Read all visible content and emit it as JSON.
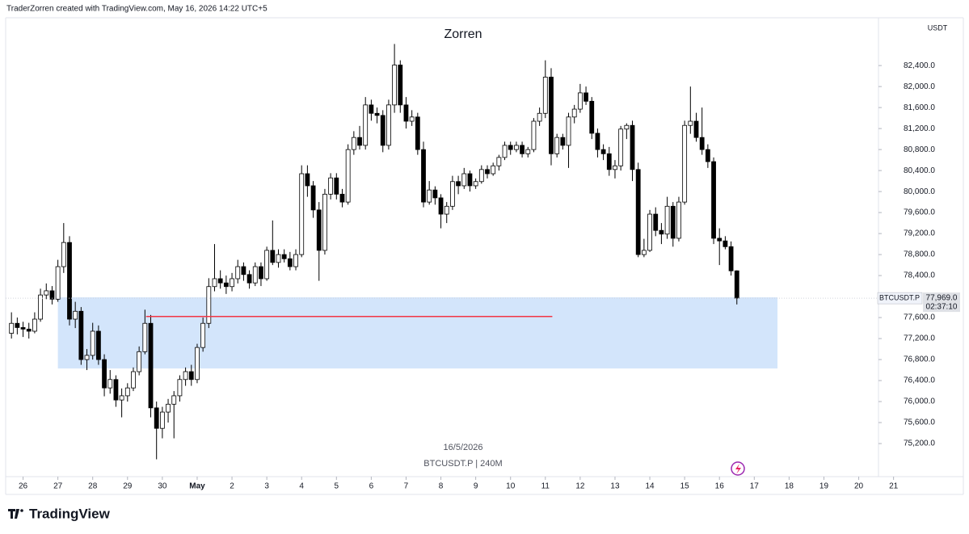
{
  "header": "TraderZorren created with TradingView.com, May 16, 2026 14:22 UTC+5",
  "footer": "TradingView",
  "chart_data": {
    "type": "candlestick",
    "title": "Zorren",
    "watermark_date": "16/5/2026",
    "watermark_symbol": "BTCUSDT.P | 240M",
    "y_unit": "USDT",
    "up_color": "#ffffff",
    "down_color": "#000000",
    "edge_color": "#000000",
    "grid": false,
    "xlim": [
      -1,
      154
    ],
    "ylim": [
      74570,
      83310
    ],
    "xticks": [
      {
        "value": 2,
        "label": "26"
      },
      {
        "value": 8,
        "label": "27"
      },
      {
        "value": 14,
        "label": "28"
      },
      {
        "value": 20,
        "label": "29"
      },
      {
        "value": 26,
        "label": "30"
      },
      {
        "value": 32,
        "label": "May"
      },
      {
        "value": 38,
        "label": "2"
      },
      {
        "value": 44,
        "label": "3"
      },
      {
        "value": 50,
        "label": "4"
      },
      {
        "value": 56,
        "label": "5"
      },
      {
        "value": 62,
        "label": "6"
      },
      {
        "value": 68,
        "label": "7"
      },
      {
        "value": 74,
        "label": "8"
      },
      {
        "value": 80,
        "label": "9"
      },
      {
        "value": 86,
        "label": "10"
      },
      {
        "value": 92,
        "label": "11"
      },
      {
        "value": 98,
        "label": "12"
      },
      {
        "value": 104,
        "label": "13"
      },
      {
        "value": 110,
        "label": "14"
      },
      {
        "value": 116,
        "label": "15"
      },
      {
        "value": 122,
        "label": "16"
      },
      {
        "value": 128,
        "label": "17"
      },
      {
        "value": 134,
        "label": "18"
      },
      {
        "value": 140,
        "label": "19"
      },
      {
        "value": 146,
        "label": "20"
      },
      {
        "value": 152,
        "label": "21"
      }
    ],
    "yticks": [
      {
        "value": 75200,
        "label": "75,200.0"
      },
      {
        "value": 75600,
        "label": "75,600.0"
      },
      {
        "value": 76000,
        "label": "76,000.0"
      },
      {
        "value": 76400,
        "label": "76,400.0"
      },
      {
        "value": 76800,
        "label": "76,800.0"
      },
      {
        "value": 77200,
        "label": "77,200.0"
      },
      {
        "value": 77600,
        "label": "77,600.0"
      },
      {
        "value": 78400,
        "label": "78,400.0"
      },
      {
        "value": 78800,
        "label": "78,800.0"
      },
      {
        "value": 79200,
        "label": "79,200.0"
      },
      {
        "value": 79600,
        "label": "79,600.0"
      },
      {
        "value": 80000,
        "label": "80,000.0"
      },
      {
        "value": 80400,
        "label": "80,400.0"
      },
      {
        "value": 80800,
        "label": "80,800.0"
      },
      {
        "value": 81200,
        "label": "81,200.0"
      },
      {
        "value": 81600,
        "label": "81,600.0"
      },
      {
        "value": 82000,
        "label": "82,000.0"
      },
      {
        "value": 82400,
        "label": "82,400.0"
      }
    ],
    "high": [
      77700,
      77600,
      77520,
      77500,
      77700,
      78150,
      78250,
      78200,
      78700,
      79400,
      79150,
      77900,
      77800,
      77000,
      77500,
      77450,
      76900,
      76600,
      76500,
      76250,
      76350,
      76650,
      77050,
      77750,
      77650,
      76000,
      75900,
      76050,
      76200,
      76500,
      76650,
      76700,
      77100,
      77600,
      78350,
      79000,
      78500,
      78400,
      78450,
      78700,
      78650,
      78500,
      78650,
      78650,
      78950,
      79450,
      78900,
      78900,
      78850,
      78900,
      80500,
      80500,
      80200,
      79800,
      80050,
      80350,
      80350,
      80050,
      80900,
      81150,
      81250,
      81800,
      81750,
      81600,
      81550,
      81750,
      82811,
      82500,
      81800,
      81550,
      81500,
      80950,
      80200,
      80100,
      79950,
      79800,
      80300,
      80300,
      80450,
      80400,
      80250,
      80500,
      80500,
      80550,
      80700,
      80950,
      80950,
      80950,
      80950,
      80850,
      81400,
      81600,
      82500,
      82350,
      81100,
      81100,
      81500,
      81650,
      82050,
      82000,
      81800,
      81200,
      80900,
      80850,
      80600,
      81250,
      81300,
      81350,
      80550,
      79100,
      79650,
      79700,
      79400,
      79900,
      79800,
      79900,
      81350,
      82000,
      81500,
      81600,
      80900,
      80650,
      79300,
      79150,
      79050,
      78500
    ],
    "low": [
      77200,
      77280,
      77230,
      77200,
      77300,
      77520,
      77950,
      77850,
      77900,
      78450,
      77450,
      77400,
      76700,
      76600,
      76800,
      76700,
      76100,
      76150,
      75900,
      75700,
      76000,
      76200,
      76500,
      76900,
      75700,
      74900,
      75300,
      75600,
      75300,
      76000,
      76300,
      76300,
      76350,
      76950,
      77400,
      78100,
      78150,
      78050,
      78100,
      78250,
      78300,
      78150,
      78200,
      78200,
      78300,
      78600,
      78550,
      78650,
      78500,
      78500,
      78750,
      79900,
      79500,
      78300,
      78800,
      79850,
      79850,
      79700,
      79750,
      80700,
      80800,
      80800,
      81350,
      81300,
      80750,
      80800,
      81500,
      81500,
      81200,
      81250,
      80700,
      79700,
      79750,
      79750,
      79300,
      79400,
      79650,
      79950,
      80050,
      80000,
      80050,
      80150,
      80250,
      80300,
      80400,
      80600,
      80700,
      80750,
      80650,
      80650,
      80750,
      81250,
      81400,
      80500,
      80650,
      80800,
      80450,
      81300,
      81500,
      81650,
      81000,
      80650,
      80600,
      80300,
      80250,
      80400,
      81000,
      80200,
      78750,
      78750,
      78850,
      79150,
      79000,
      79100,
      78950,
      79050,
      79750,
      81100,
      80950,
      80700,
      80450,
      79000,
      78600,
      78900,
      78400,
      77850
    ],
    "last_price": {
      "name": "BTCUSDT.P",
      "value": 77969,
      "value_label": "77,969.0",
      "countdown": "02:37:10"
    },
    "zone": {
      "x": [
        8,
        132
      ],
      "y": [
        76630,
        77985
      ],
      "color": "#d3e5fb"
    },
    "level_line": {
      "x": [
        23.2,
        93.2
      ],
      "y": 77620,
      "color": "#f23645"
    },
    "open": [
      77300,
      77490,
      77410,
      77380,
      77340,
      77570,
      78030,
      78110,
      77950,
      78570,
      79030,
      77570,
      77720,
      76800,
      76880,
      77340,
      76800,
      76260,
      76420,
      76030,
      76110,
      76260,
      76570,
      76950,
      77490,
      75880,
      75490,
      75800,
      75950,
      76110,
      76420,
      76570,
      76420,
      77030,
      77490,
      78190,
      78340,
      78260,
      78190,
      78340,
      78570,
      78420,
      78260,
      78570,
      78340,
      78880,
      78650,
      78800,
      78720,
      78570,
      78800,
      80340,
      80110,
      79650,
      78880,
      79950,
      80260,
      79950,
      79800,
      80800,
      81030,
      80880,
      81650,
      81490,
      81450,
      80880,
      81650,
      82410,
      81650,
      81340,
      81420,
      80800,
      79800,
      80030,
      79880,
      79570,
      79720,
      80190,
      80110,
      80340,
      80110,
      80190,
      80420,
      80340,
      80490,
      80650,
      80880,
      80800,
      80880,
      80720,
      80800,
      81340,
      81490,
      82180,
      80720,
      81030,
      80880,
      81420,
      81570,
      81880,
      81720,
      81110,
      80800,
      80720,
      80420,
      80490,
      81190,
      81260,
      80420,
      78800,
      78880,
      79570,
      79260,
      79190,
      79720,
      79110,
      79800,
      81260,
      81340,
      81030,
      80800,
      80570,
      79110,
      79060,
      78950,
      78490
    ],
    "close": [
      77490,
      77410,
      77380,
      77340,
      77570,
      78030,
      78110,
      77950,
      78570,
      79030,
      77570,
      77720,
      76800,
      76880,
      77340,
      76800,
      76260,
      76420,
      76030,
      76110,
      76260,
      76570,
      76950,
      77490,
      75880,
      75490,
      75800,
      75950,
      76110,
      76420,
      76570,
      76420,
      77030,
      77490,
      78190,
      78340,
      78260,
      78190,
      78340,
      78570,
      78420,
      78260,
      78570,
      78340,
      78880,
      78650,
      78800,
      78720,
      78570,
      78800,
      80340,
      80110,
      79650,
      78880,
      79950,
      80260,
      79950,
      79800,
      80800,
      81030,
      80880,
      81650,
      81490,
      81450,
      80880,
      81650,
      82410,
      81650,
      81340,
      81420,
      80800,
      79800,
      80030,
      79880,
      79570,
      79720,
      80190,
      80110,
      80340,
      80110,
      80190,
      80420,
      80340,
      80490,
      80650,
      80880,
      80800,
      80880,
      80720,
      80800,
      81340,
      81490,
      82180,
      80720,
      81030,
      80880,
      81420,
      81570,
      81880,
      81720,
      81110,
      80800,
      80720,
      80420,
      80490,
      81190,
      81260,
      80420,
      78800,
      78880,
      79570,
      79260,
      79190,
      79720,
      79110,
      79800,
      81260,
      81340,
      81030,
      80800,
      80570,
      79110,
      79060,
      78950,
      78490,
      77969
    ]
  }
}
